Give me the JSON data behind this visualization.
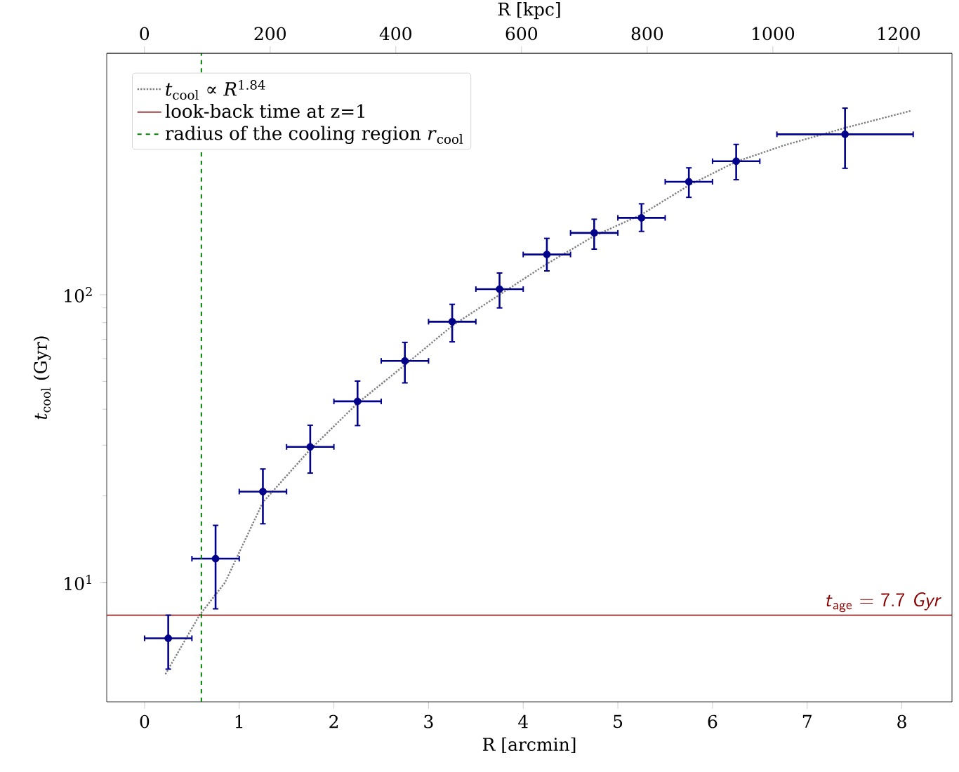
{
  "chart_data": {
    "type": "scatter",
    "xlabel": "R [arcmin]",
    "ylabel": "*t*$_{cool}$ (Gyr)",
    "x2label": "R [kpc]",
    "xlim": [
      -0.4,
      8.53
    ],
    "xticks": [
      0,
      1,
      2,
      3,
      4,
      5,
      6,
      7,
      8
    ],
    "x2lim": [
      -60,
      1285
    ],
    "x2ticks": [
      0,
      200,
      400,
      600,
      800,
      1000,
      1200
    ],
    "ylim": [
      3.85,
      690
    ],
    "yticks": [
      {
        "value": 10,
        "label": "10$^{1}$"
      },
      {
        "value": 100,
        "label": "10$^{2}$"
      }
    ],
    "log": "y",
    "grid": false,
    "legend": "top left",
    "series": [
      {
        "type": "line",
        "name": "*t*$_{cool}$ ∝ *R*$^{1.84}$",
        "color": "#808080",
        "line_style": "dotted",
        "marker": "none",
        "x": [
          0.22,
          0.58,
          0.85,
          1.25,
          1.75,
          2.25,
          2.75,
          3.25,
          3.75,
          4.25,
          4.75,
          5.25,
          5.75,
          6.25,
          6.75,
          7.4,
          8.1
        ],
        "values": [
          4.8,
          7.7,
          10,
          19,
          29,
          42,
          57,
          78,
          100,
          128,
          160,
          190,
          240,
          290,
          330,
          380,
          436
        ]
      },
      {
        "type": "line",
        "name": "look-back time at z=1",
        "color": "#8b0000",
        "line_style": "solid",
        "marker": "none",
        "x": [
          -0.4,
          8.53
        ],
        "values": [
          7.7,
          7.7
        ]
      },
      {
        "color": "#00008b",
        "marker": "circle",
        "x": [
          0.25,
          0.75,
          1.25,
          1.75,
          2.25,
          2.75,
          3.25,
          3.75,
          4.25,
          4.75,
          5.25,
          5.75,
          6.25,
          7.4
        ],
        "values": [
          6.4,
          12.1,
          20.7,
          29.6,
          42.6,
          58.9,
          80.6,
          104.6,
          138,
          164,
          185,
          247,
          291,
          361
        ],
        "errors": [
          [
            5.0,
            7.7
          ],
          [
            8.1,
            15.8
          ],
          [
            16.0,
            24.8
          ],
          [
            24.0,
            35.2
          ],
          [
            35.1,
            50.1
          ],
          [
            49.4,
            68.3
          ],
          [
            68.6,
            92.6
          ],
          [
            90,
            119
          ],
          [
            121,
            157
          ],
          [
            144,
            183
          ],
          [
            166,
            207
          ],
          [
            218,
            276
          ],
          [
            251,
            333
          ],
          [
            275,
            445
          ]
        ],
        "xerrors": [
          0.25,
          0.25,
          0.25,
          0.25,
          0.25,
          0.25,
          0.25,
          0.25,
          0.25,
          0.25,
          0.25,
          0.25,
          0.25,
          0.72
        ]
      }
    ],
    "ref_lines": [
      {
        "axis": "x",
        "value": 0.6,
        "label": "radius of the cooling region *r*$_{cool}$",
        "color": "#008000",
        "line_style": "dashed"
      }
    ],
    "annotations": [
      {
        "text": "*t*$_{age}$ = 7.7 *Gyr*",
        "x": 7.8,
        "y": 7.7
      }
    ]
  }
}
